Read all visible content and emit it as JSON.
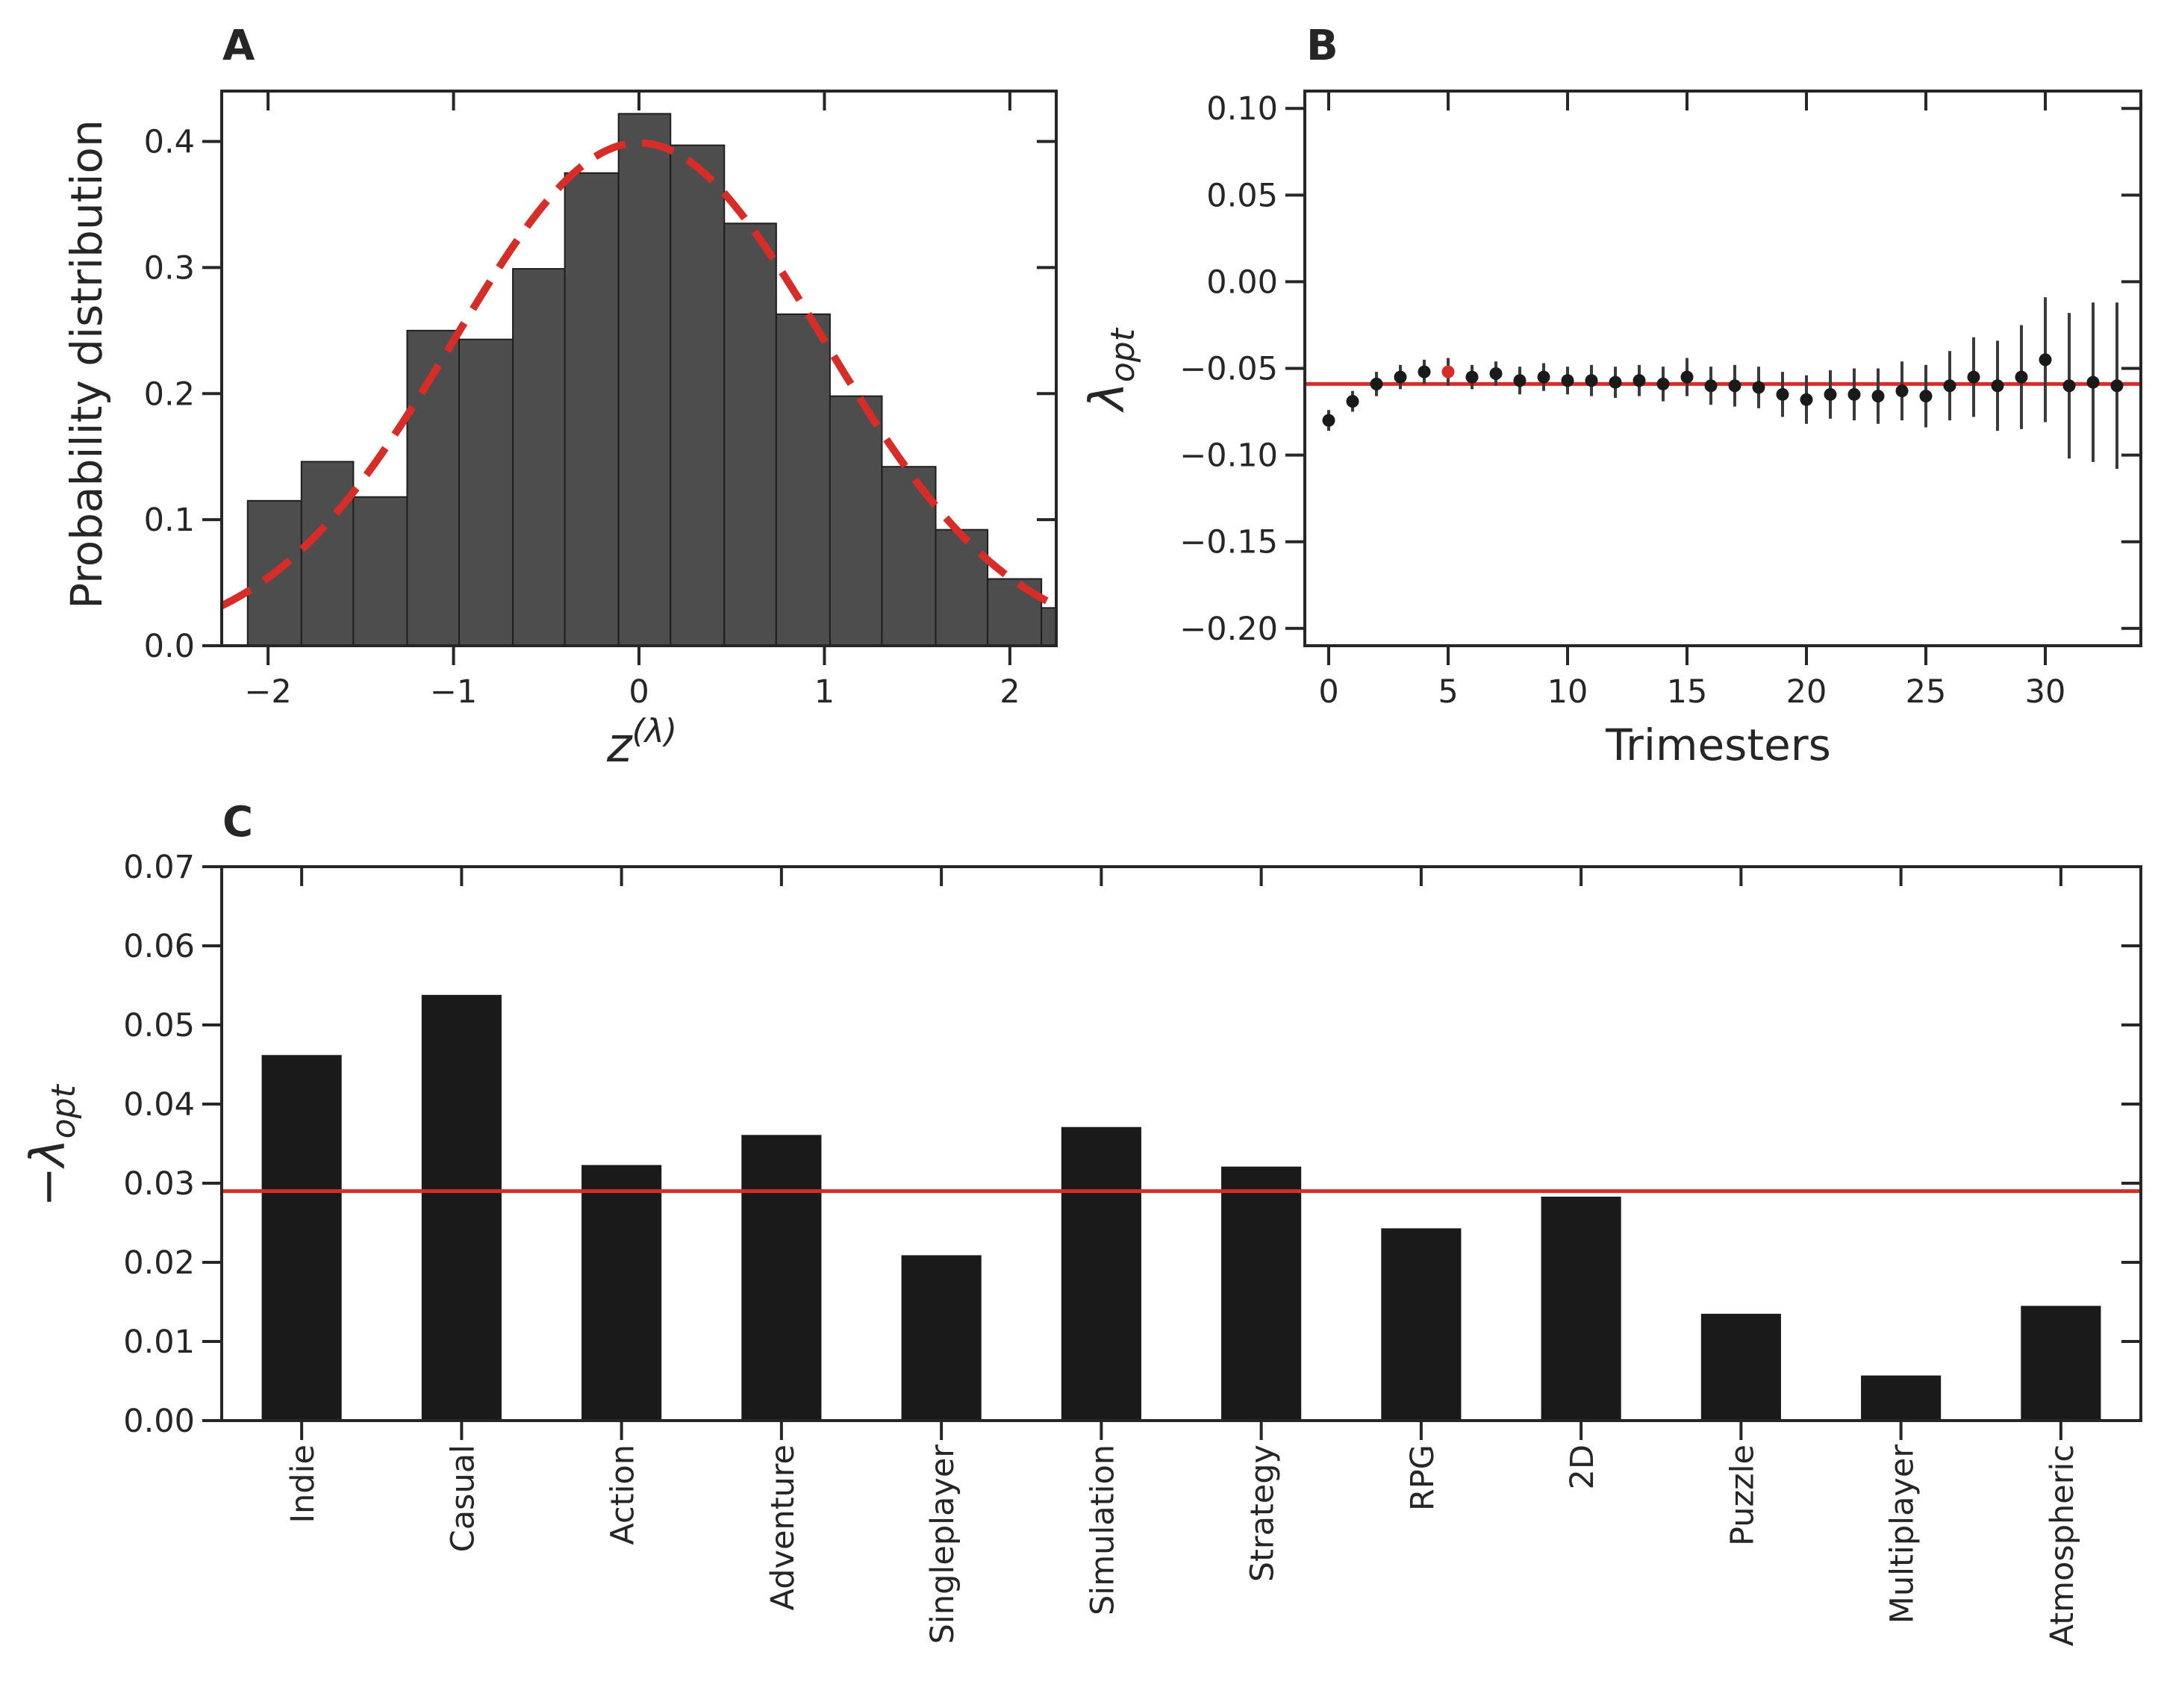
{
  "colors": {
    "bar_dark": "#4d4d4d",
    "bar_black": "#1a1a1a",
    "red": "#d62d28",
    "axis": "#262626"
  },
  "chart_data": [
    {
      "panel": "A",
      "type": "bar",
      "subtype": "histogram with normal pdf overlay",
      "xlabel": "z",
      "xlabel_superscript": "(λ)",
      "ylabel": "Probability distribution",
      "xlim": [
        -2.25,
        2.25
      ],
      "ylim": [
        0.0,
        0.44
      ],
      "xticks": [
        -2,
        -1,
        0,
        1,
        2
      ],
      "xtick_labels": [
        "−2",
        "−1",
        "0",
        "1",
        "2"
      ],
      "yticks": [
        0.0,
        0.1,
        0.2,
        0.3,
        0.4
      ],
      "ytick_labels": [
        "0.0",
        "0.1",
        "0.2",
        "0.3",
        "0.4"
      ],
      "bin_edges": [
        -2.11,
        -1.82,
        -1.54,
        -1.25,
        -0.97,
        -0.68,
        -0.4,
        -0.11,
        0.17,
        0.46,
        0.74,
        1.03,
        1.31,
        1.6,
        1.88,
        2.17,
        2.25
      ],
      "values": [
        0.115,
        0.146,
        0.118,
        0.25,
        0.243,
        0.299,
        0.375,
        0.422,
        0.397,
        0.335,
        0.263,
        0.198,
        0.142,
        0.092,
        0.053,
        0.03
      ],
      "overlay": {
        "type": "line",
        "style": "dashed",
        "color": "red",
        "function": "standard normal pdf",
        "mean": 0,
        "std": 1
      }
    },
    {
      "panel": "B",
      "type": "scatter",
      "subtype": "points with error bars and reference line",
      "xlabel": "Trimesters",
      "ylabel": "λ",
      "ylabel_subscript": "opt",
      "xlim": [
        -1,
        34
      ],
      "ylim": [
        -0.21,
        0.11
      ],
      "xticks": [
        0,
        5,
        10,
        15,
        20,
        25,
        30
      ],
      "xtick_labels": [
        "0",
        "5",
        "10",
        "15",
        "20",
        "25",
        "30"
      ],
      "yticks": [
        -0.2,
        -0.15,
        -0.1,
        -0.05,
        0.0,
        0.05,
        0.1
      ],
      "ytick_labels": [
        "−0.20",
        "−0.15",
        "−0.10",
        "−0.05",
        "0.00",
        "0.05",
        "0.10"
      ],
      "x": [
        0,
        1,
        2,
        3,
        4,
        5,
        6,
        7,
        8,
        9,
        10,
        11,
        12,
        13,
        14,
        15,
        16,
        17,
        18,
        19,
        20,
        21,
        22,
        23,
        24,
        25,
        26,
        27,
        28,
        29,
        30,
        31,
        32,
        33
      ],
      "y": [
        -0.08,
        -0.069,
        -0.059,
        -0.055,
        -0.052,
        -0.052,
        -0.055,
        -0.053,
        -0.057,
        -0.055,
        -0.057,
        -0.057,
        -0.058,
        -0.057,
        -0.059,
        -0.055,
        -0.06,
        -0.06,
        -0.061,
        -0.065,
        -0.068,
        -0.065,
        -0.065,
        -0.066,
        -0.063,
        -0.066,
        -0.06,
        -0.055,
        -0.06,
        -0.055,
        -0.045,
        -0.06,
        -0.058,
        -0.06
      ],
      "yerr": [
        0.006,
        0.006,
        0.007,
        0.007,
        0.007,
        0.008,
        0.007,
        0.007,
        0.008,
        0.008,
        0.008,
        0.009,
        0.009,
        0.009,
        0.01,
        0.011,
        0.011,
        0.012,
        0.012,
        0.013,
        0.014,
        0.014,
        0.015,
        0.016,
        0.017,
        0.018,
        0.02,
        0.023,
        0.026,
        0.03,
        0.036,
        0.042,
        0.046,
        0.048
      ],
      "highlight_index": 5,
      "reference_line": -0.059
    },
    {
      "panel": "C",
      "type": "bar",
      "ylabel": "−λ",
      "ylabel_subscript": "opt",
      "ylim": [
        0.0,
        0.07
      ],
      "yticks": [
        0.0,
        0.01,
        0.02,
        0.03,
        0.04,
        0.05,
        0.06,
        0.07
      ],
      "ytick_labels": [
        "0.00",
        "0.01",
        "0.02",
        "0.03",
        "0.04",
        "0.05",
        "0.06",
        "0.07"
      ],
      "categories": [
        "Indie",
        "Casual",
        "Action",
        "Adventure",
        "Singleplayer",
        "Simulation",
        "Strategy",
        "RPG",
        "2D",
        "Puzzle",
        "Multiplayer",
        "Atmospheric"
      ],
      "values": [
        0.0462,
        0.0538,
        0.0323,
        0.0361,
        0.0209,
        0.0371,
        0.0321,
        0.0243,
        0.0283,
        0.0135,
        0.0057,
        0.0145
      ],
      "reference_line": 0.029
    }
  ],
  "panels": {
    "a_label": "A",
    "b_label": "B",
    "c_label": "C"
  }
}
